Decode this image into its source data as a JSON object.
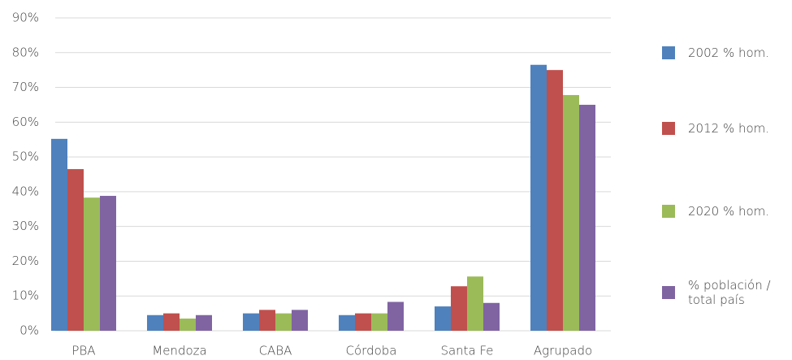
{
  "chart_data": {
    "type": "bar",
    "categories": [
      "PBA",
      "Mendoza",
      "CABA",
      "Córdoba",
      "Santa Fe",
      "Agrupado"
    ],
    "series": [
      {
        "name": "2002 % hom.",
        "color": "#4f81bd",
        "values": [
          55.2,
          4.5,
          5,
          4.5,
          7,
          76.5
        ]
      },
      {
        "name": "2012 % hom.",
        "color": "#c0504d",
        "values": [
          46.5,
          5,
          6,
          5,
          12.8,
          75
        ]
      },
      {
        "name": "2020 % hom.",
        "color": "#9bbb59",
        "values": [
          38.3,
          3.5,
          5,
          5,
          15.6,
          67.8
        ]
      },
      {
        "name": "% población / total país",
        "color": "#8064a2",
        "values": [
          38.8,
          4.5,
          6,
          8.3,
          8,
          65
        ]
      }
    ],
    "ylim": [
      0,
      90
    ],
    "yticks": [
      {
        "value": 0,
        "label": "0%"
      },
      {
        "value": 10,
        "label": "10%"
      },
      {
        "value": 20,
        "label": "20%"
      },
      {
        "value": 30,
        "label": "30%"
      },
      {
        "value": 40,
        "label": "40%"
      },
      {
        "value": 50,
        "label": "50%"
      },
      {
        "value": 60,
        "label": "60%"
      },
      {
        "value": 70,
        "label": "70%"
      },
      {
        "value": 80,
        "label": "80%"
      },
      {
        "value": 90,
        "label": "90%"
      }
    ],
    "grid": true,
    "legend": "right"
  }
}
